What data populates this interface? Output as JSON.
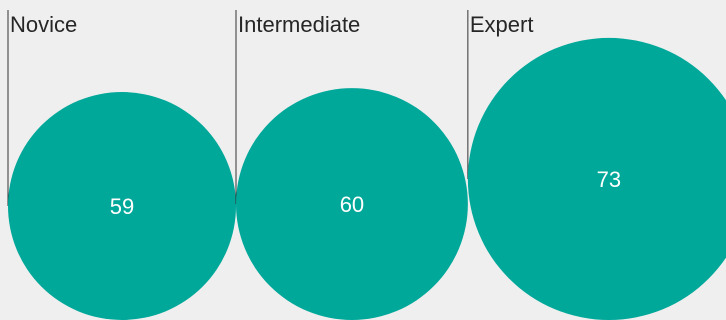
{
  "chart_data": {
    "type": "bubble",
    "categories": [
      "Novice",
      "Intermediate",
      "Expert"
    ],
    "values": [
      59,
      60,
      73
    ],
    "value_labels": [
      "59",
      "60",
      "73"
    ],
    "color": "#00a89a",
    "background": "#efefef",
    "title": "",
    "xlabel": "",
    "ylabel": ""
  }
}
